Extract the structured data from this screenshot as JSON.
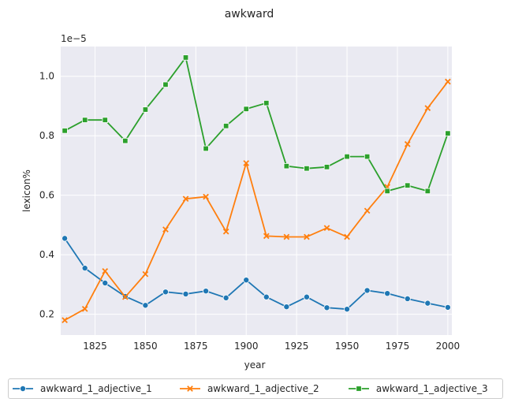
{
  "chart_data": {
    "type": "line",
    "title": "awkward",
    "xlabel": "year",
    "ylabel": "lexicon%",
    "y_offset_label": "1e−5",
    "x": [
      1810,
      1820,
      1830,
      1840,
      1850,
      1860,
      1870,
      1880,
      1890,
      1900,
      1910,
      1920,
      1930,
      1940,
      1950,
      1960,
      1970,
      1980,
      1990,
      2000
    ],
    "xlim": [
      1808,
      2002
    ],
    "ylim": [
      0.13,
      1.1
    ],
    "xticks": [
      1825,
      1850,
      1875,
      1900,
      1925,
      1950,
      1975,
      2000
    ],
    "yticks": [
      0.2,
      0.4,
      0.6,
      0.8,
      1.0
    ],
    "ytick_labels": [
      "0.2",
      "0.4",
      "0.6",
      "0.8",
      "1.0"
    ],
    "grid": true,
    "legend_position": "bottom",
    "series": [
      {
        "name": "awkward_1_adjective_1",
        "color": "#1f77b4",
        "marker": "circle",
        "values": [
          0.455,
          0.355,
          0.305,
          0.26,
          0.23,
          0.275,
          0.268,
          0.278,
          0.255,
          0.315,
          0.258,
          0.225,
          0.258,
          0.222,
          0.217,
          0.28,
          0.27,
          0.252,
          0.237,
          0.223
        ]
      },
      {
        "name": "awkward_1_adjective_2",
        "color": "#ff7f0e",
        "marker": "x",
        "values": [
          0.18,
          0.218,
          0.345,
          0.258,
          0.335,
          0.485,
          0.588,
          0.595,
          0.478,
          0.708,
          0.463,
          0.46,
          0.46,
          0.49,
          0.46,
          0.548,
          0.628,
          0.772,
          0.893,
          0.982
        ]
      },
      {
        "name": "awkward_1_adjective_3",
        "color": "#2ca02c",
        "marker": "square",
        "values": [
          0.817,
          0.853,
          0.853,
          0.783,
          0.888,
          0.972,
          1.063,
          0.757,
          0.833,
          0.89,
          0.91,
          0.698,
          0.69,
          0.695,
          0.73,
          0.73,
          0.614,
          0.633,
          0.614,
          0.808
        ]
      }
    ]
  }
}
